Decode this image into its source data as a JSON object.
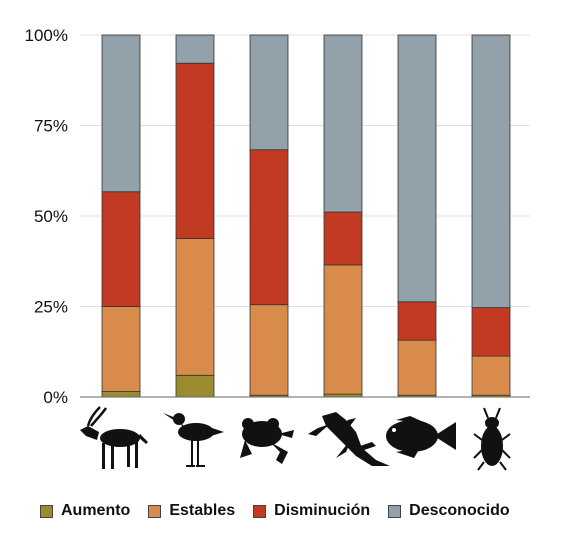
{
  "chart_data": {
    "type": "bar",
    "stacked": true,
    "categories": [
      "",
      "",
      "",
      "",
      "",
      ""
    ],
    "category_icons": [
      "antelope-icon",
      "shorebird-icon",
      "frog-icon",
      "lizard-icon",
      "fish-icon",
      "beetle-icon"
    ],
    "series": [
      {
        "name": "Aumento",
        "color": "#9a8b2c",
        "values": [
          1.5,
          6.0,
          0.5,
          0.8,
          0.5,
          0.5
        ]
      },
      {
        "name": "Estables",
        "color": "#d98b4c",
        "values": [
          23.5,
          37.8,
          25.0,
          35.7,
          15.2,
          10.8
        ]
      },
      {
        "name": "Disminución",
        "color": "#c23a22",
        "values": [
          31.7,
          48.4,
          42.8,
          14.6,
          10.6,
          13.4
        ]
      },
      {
        "name": "Desconocido",
        "color": "#93a1ab",
        "values": [
          43.3,
          7.8,
          31.7,
          48.9,
          73.7,
          75.3
        ]
      }
    ],
    "ytick_labels": [
      "0%",
      "25%",
      "50%",
      "75%",
      "100%"
    ],
    "ylim": [
      0,
      100
    ],
    "grid": true,
    "legend_position": "bottom",
    "title": "",
    "xlabel": "",
    "ylabel": ""
  }
}
